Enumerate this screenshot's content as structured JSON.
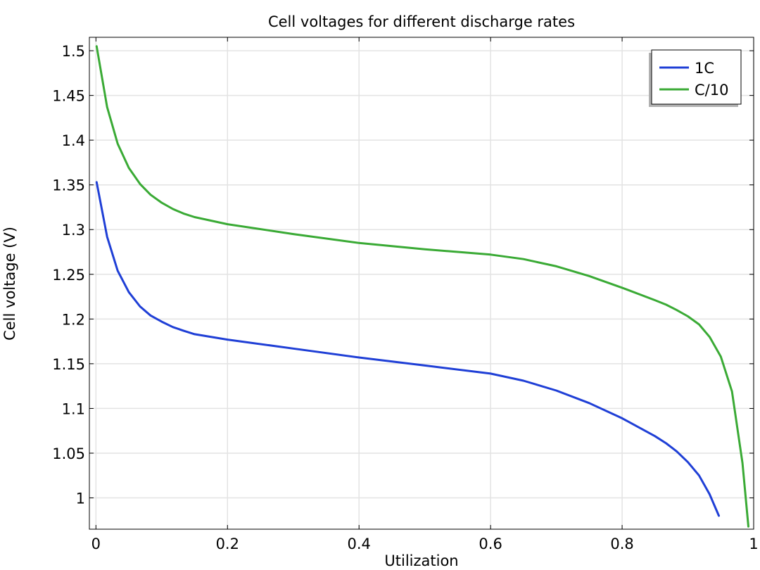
{
  "chart_data": {
    "type": "line",
    "title": "Cell voltages for different discharge rates",
    "xlabel": "Utilization",
    "ylabel": "Cell voltage (V)",
    "xlim": [
      -0.01,
      1.0
    ],
    "ylim": [
      0.965,
      1.515
    ],
    "xticks": [
      0,
      0.2,
      0.4,
      0.6,
      0.8,
      1
    ],
    "xtick_labels": [
      "0",
      "0.2",
      "0.4",
      "0.6",
      "0.8",
      "1"
    ],
    "yticks": [
      1,
      1.05,
      1.1,
      1.15,
      1.2,
      1.25,
      1.3,
      1.35,
      1.4,
      1.45,
      1.5
    ],
    "ytick_labels": [
      "1",
      "1.05",
      "1.1",
      "1.15",
      "1.2",
      "1.25",
      "1.3",
      "1.35",
      "1.4",
      "1.45",
      "1.5"
    ],
    "grid": true,
    "legend_position": "top-right",
    "series": [
      {
        "name": "1C",
        "color": "#1f3fd6",
        "x": [
          0.001,
          0.017,
          0.033,
          0.05,
          0.067,
          0.083,
          0.1,
          0.117,
          0.133,
          0.15,
          0.2,
          0.3,
          0.4,
          0.5,
          0.6,
          0.65,
          0.7,
          0.75,
          0.8,
          0.85,
          0.867,
          0.883,
          0.9,
          0.917,
          0.933,
          0.947
        ],
        "y": [
          1.353,
          1.292,
          1.254,
          1.23,
          1.214,
          1.204,
          1.197,
          1.191,
          1.187,
          1.183,
          1.177,
          1.167,
          1.157,
          1.148,
          1.139,
          1.131,
          1.12,
          1.106,
          1.089,
          1.069,
          1.061,
          1.052,
          1.04,
          1.025,
          1.004,
          0.98
        ]
      },
      {
        "name": "C/10",
        "color": "#3aaa35",
        "x": [
          0.001,
          0.017,
          0.033,
          0.05,
          0.067,
          0.083,
          0.1,
          0.117,
          0.133,
          0.15,
          0.2,
          0.3,
          0.4,
          0.5,
          0.6,
          0.65,
          0.7,
          0.75,
          0.8,
          0.85,
          0.867,
          0.883,
          0.9,
          0.917,
          0.933,
          0.95,
          0.967,
          0.983,
          0.992
        ],
        "y": [
          1.505,
          1.437,
          1.396,
          1.369,
          1.351,
          1.339,
          1.33,
          1.323,
          1.318,
          1.314,
          1.306,
          1.295,
          1.285,
          1.278,
          1.272,
          1.267,
          1.259,
          1.248,
          1.235,
          1.221,
          1.216,
          1.21,
          1.203,
          1.194,
          1.18,
          1.158,
          1.119,
          1.039,
          0.968
        ]
      }
    ]
  }
}
